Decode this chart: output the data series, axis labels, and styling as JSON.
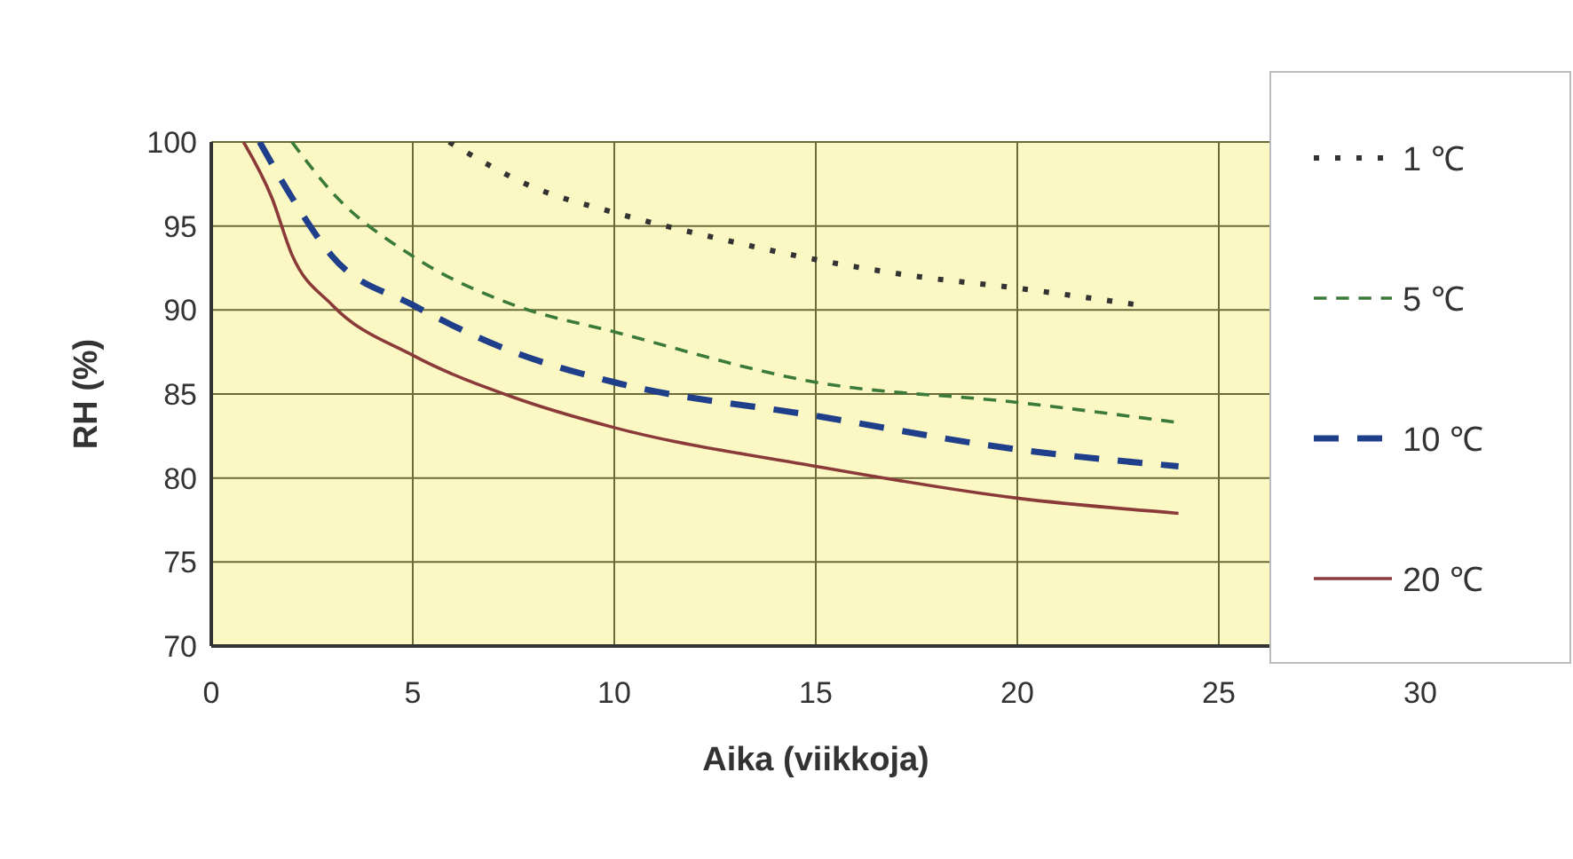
{
  "chart_data": {
    "type": "line",
    "xlabel": "Aika (viikkoja)",
    "ylabel": "RH (%)",
    "xlim": [
      0,
      30
    ],
    "xticks": [
      0,
      5,
      10,
      15,
      20,
      25,
      30
    ],
    "ylim": [
      70,
      100
    ],
    "yticks": [
      70,
      75,
      80,
      85,
      90,
      95,
      100
    ],
    "grid": true,
    "legend": "right",
    "marker": "none",
    "series": [
      {
        "name": "1 ℃",
        "color": "#333333",
        "line_style": "dotted",
        "x": [
          5.9,
          8,
          10,
          12.5,
          15,
          17.5,
          20,
          23
        ],
        "values": [
          100,
          97.3,
          95.8,
          94.3,
          93,
          92,
          91.3,
          90.3
        ]
      },
      {
        "name": "5 ℃",
        "color": "#3a7a3a",
        "line_style": "dashed",
        "x": [
          2,
          3,
          5,
          7.5,
          10,
          15,
          20,
          24
        ],
        "values": [
          100,
          97,
          93.2,
          90.3,
          88.7,
          85.7,
          84.5,
          83.3
        ]
      },
      {
        "name": "10 ℃",
        "color": "#1f3f8a",
        "line_style": "dashed",
        "x": [
          1.2,
          2,
          3,
          5,
          7.5,
          10,
          15,
          20,
          24
        ],
        "values": [
          100,
          96.7,
          93.2,
          90.3,
          87.5,
          85.7,
          83.7,
          81.7,
          80.7
        ]
      },
      {
        "name": "20 ℃",
        "color": "#8b3a3a",
        "line_style": "solid",
        "x": [
          0.8,
          1.5,
          2,
          3,
          5,
          7.5,
          10,
          15,
          20,
          24
        ],
        "values": [
          100,
          96.7,
          93.3,
          90.3,
          87.3,
          84.8,
          83,
          80.7,
          78.8,
          77.9
        ]
      }
    ]
  }
}
